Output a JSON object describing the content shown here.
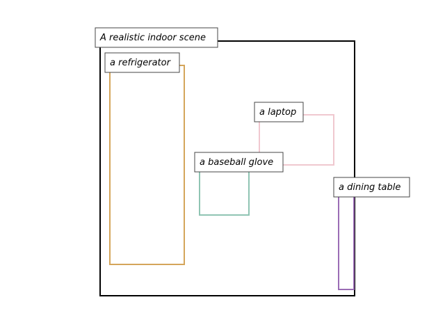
{
  "scene": {
    "label": "A realistic indoor scene",
    "stroke": "#000000"
  },
  "objects": [
    {
      "label": "a refrigerator",
      "stroke": "#d4a55a"
    },
    {
      "label": "a laptop",
      "stroke": "#f0c8cf"
    },
    {
      "label": "a baseball glove",
      "stroke": "#8fc4b3"
    },
    {
      "label": "a dining table",
      "stroke": "#9a6cb5"
    }
  ]
}
